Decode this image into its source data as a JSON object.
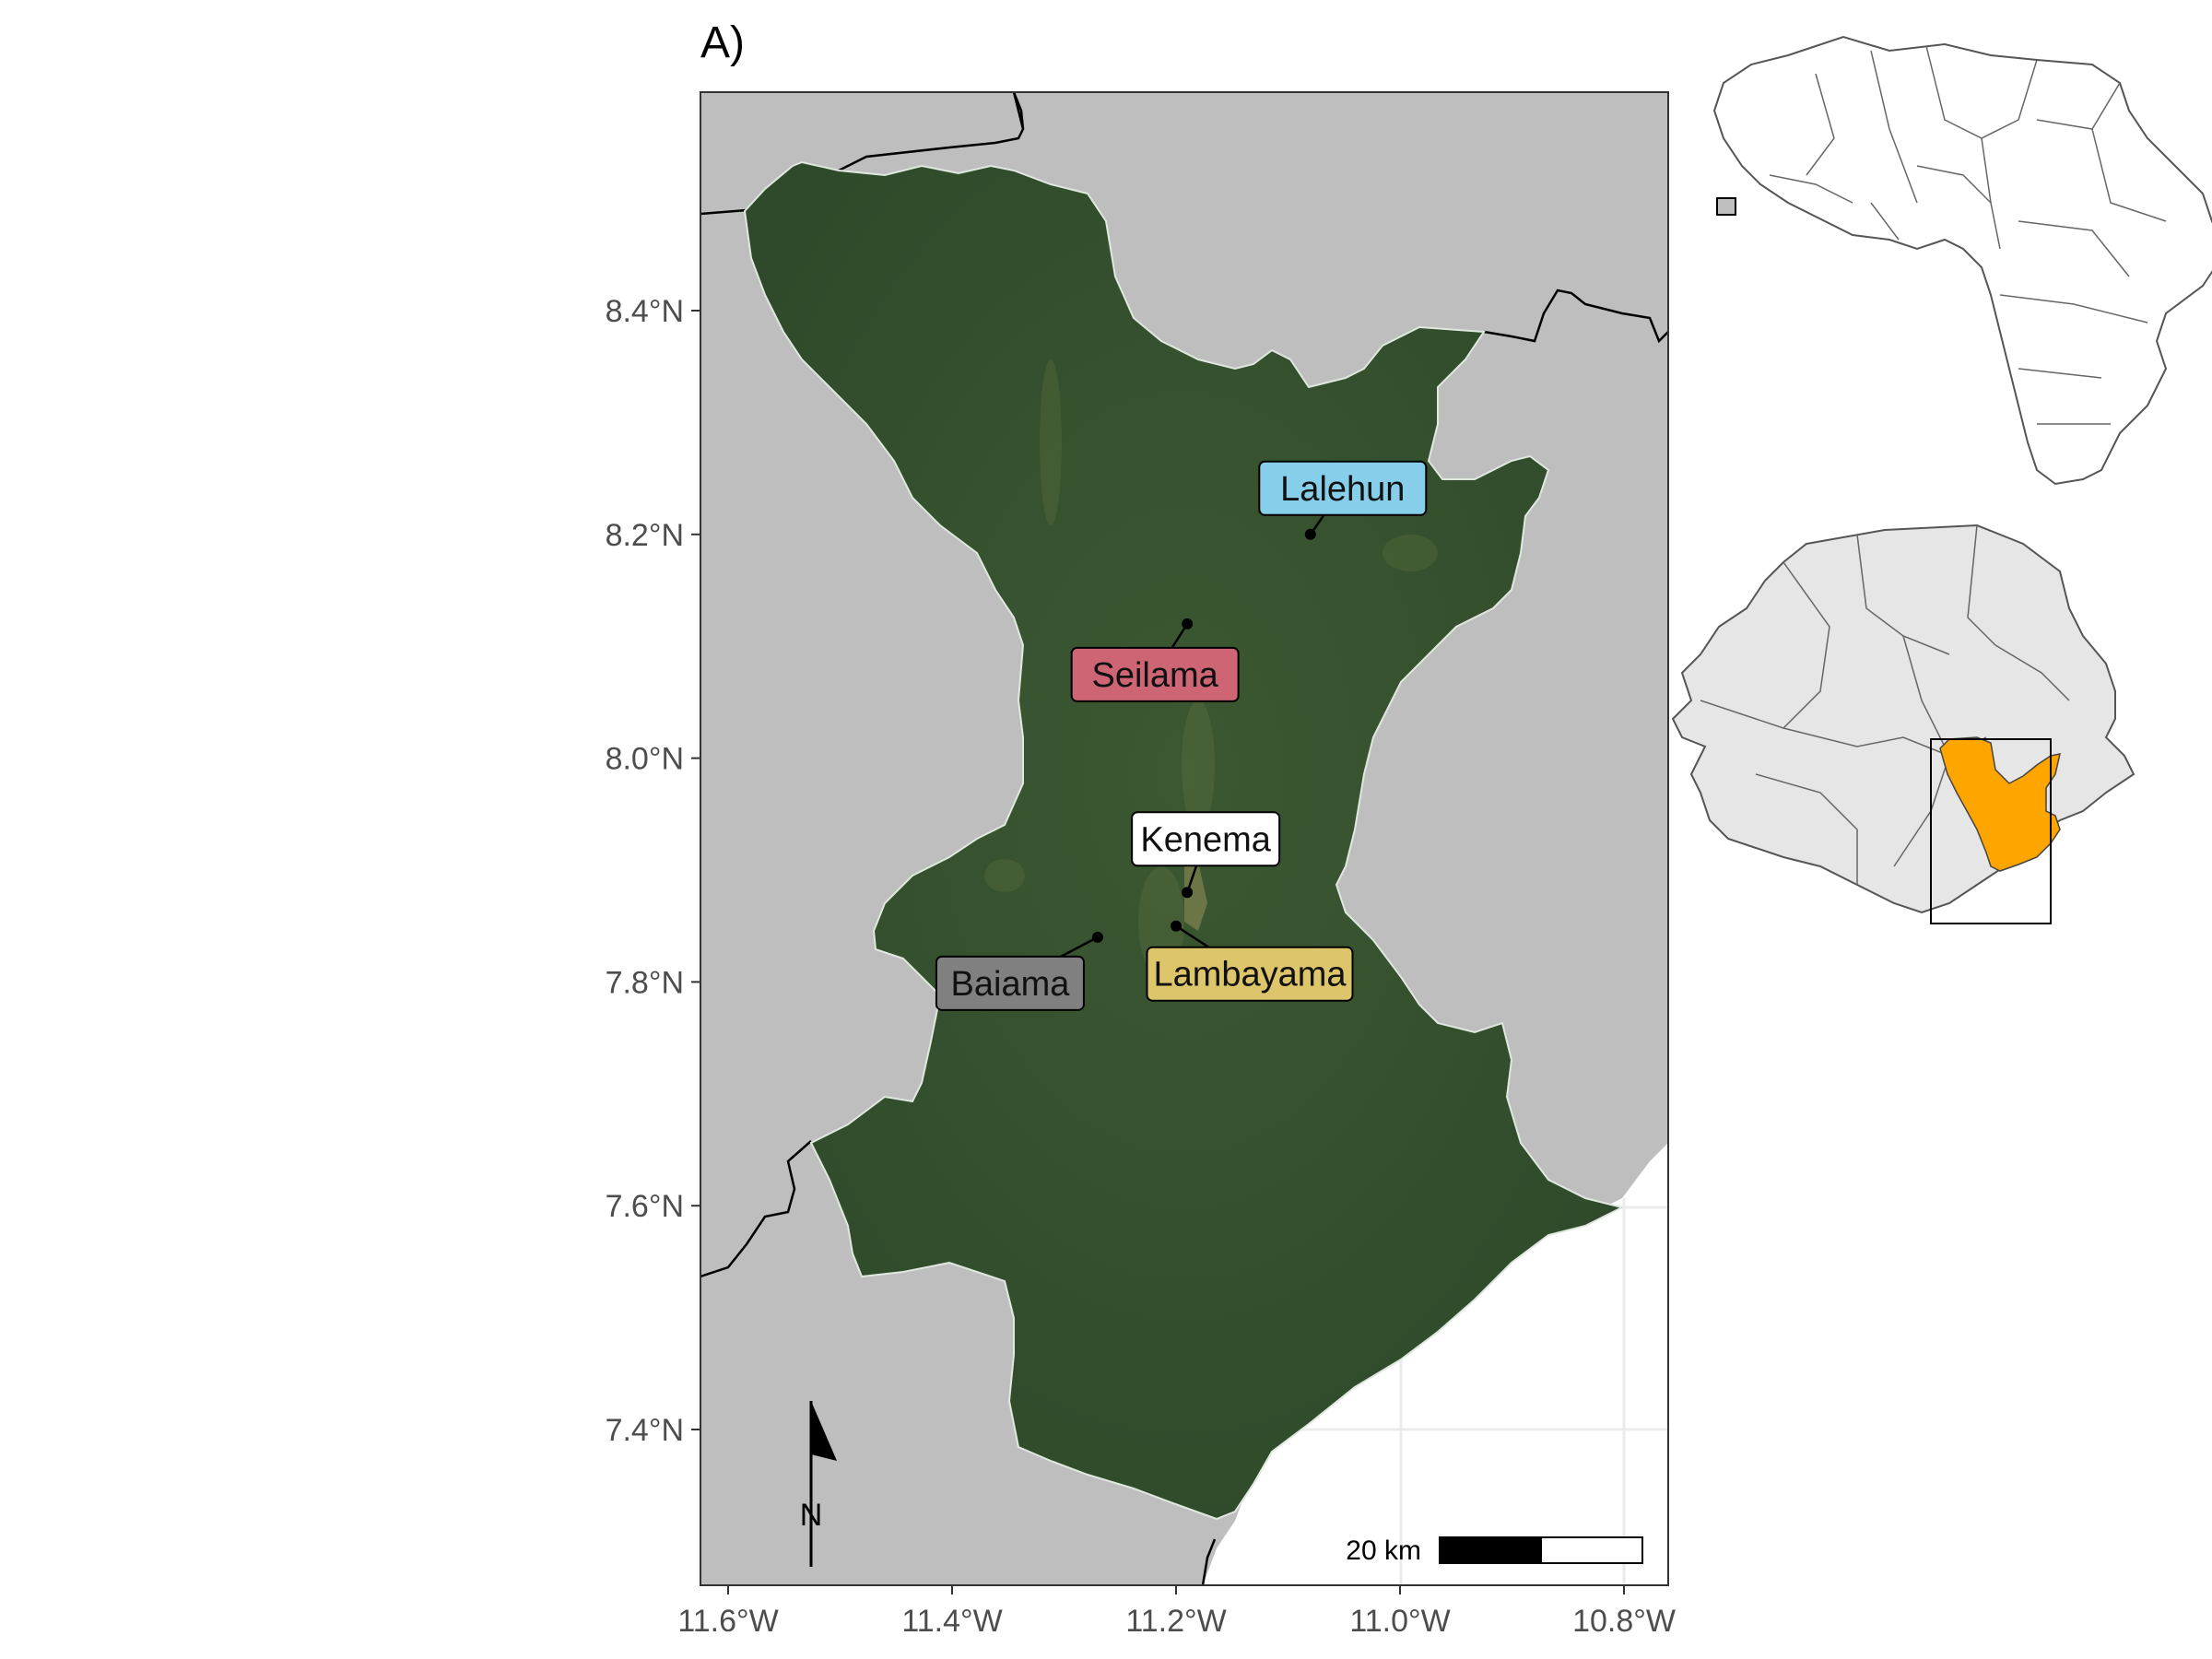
{
  "panel_label": "A)",
  "axes": {
    "x_ticks": [
      "11.6°W",
      "11.4°W",
      "11.2°W",
      "11.0°W",
      "10.8°W"
    ],
    "y_ticks": [
      "8.4°N",
      "8.2°N",
      "8.0°N",
      "7.8°N",
      "7.6°N",
      "7.4°N"
    ]
  },
  "sites": [
    {
      "name": "Lalehun",
      "lon": -11.08,
      "lat": 8.2,
      "color": "#87ceeb"
    },
    {
      "name": "Seilama",
      "lon": -11.19,
      "lat": 8.12,
      "color": "#cd6574"
    },
    {
      "name": "Kenema",
      "lon": -11.19,
      "lat": 7.88,
      "color": "#ffffff"
    },
    {
      "name": "Lambayama",
      "lon": -11.2,
      "lat": 7.85,
      "color": "#dcc56a"
    },
    {
      "name": "Baiama",
      "lon": -11.27,
      "lat": 7.84,
      "color": "#808080"
    }
  ],
  "north_arrow": {
    "label": "N"
  },
  "scale_bar": {
    "label": "20 km"
  },
  "colors": {
    "land_background": "#bebebe",
    "district_fill": "#34502e",
    "sea": "#ffffff",
    "highlight_district": "#ffa500",
    "country_fill": "#e6e6e6"
  },
  "insets": {
    "africa": "Africa locator map",
    "sierra_leone": "Sierra Leone locator map"
  }
}
